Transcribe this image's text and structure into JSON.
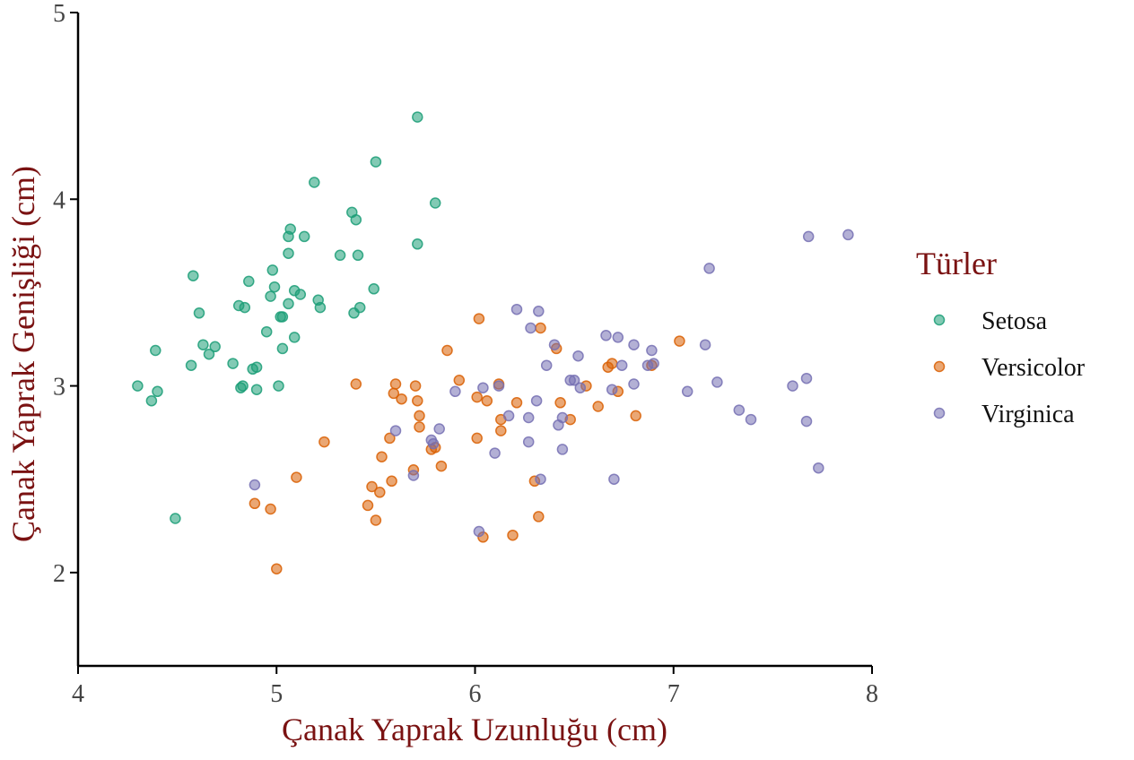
{
  "chart_data": {
    "type": "scatter",
    "title": "",
    "xlabel": "Çanak Yaprak Uzunluğu (cm)",
    "ylabel": "Çanak Yaprak Genişliği (cm)",
    "xlim": [
      4,
      8
    ],
    "ylim": [
      1.5,
      5
    ],
    "xticks": [
      "4",
      "5",
      "6",
      "7",
      "8"
    ],
    "yticks": [
      "2",
      "3",
      "4",
      "5"
    ],
    "grid": false,
    "legend": {
      "title": "Türler",
      "position": "right"
    },
    "series": [
      {
        "name": "Setosa",
        "color": "#1b9e77",
        "points": [
          [
            4.3,
            3.0
          ],
          [
            4.37,
            2.92
          ],
          [
            4.39,
            3.19
          ],
          [
            4.4,
            2.97
          ],
          [
            4.49,
            2.29
          ],
          [
            4.57,
            3.11
          ],
          [
            4.58,
            3.59
          ],
          [
            4.61,
            3.39
          ],
          [
            4.63,
            3.22
          ],
          [
            4.66,
            3.17
          ],
          [
            4.69,
            3.21
          ],
          [
            4.78,
            3.12
          ],
          [
            4.81,
            3.43
          ],
          [
            4.82,
            2.99
          ],
          [
            4.83,
            3.0
          ],
          [
            4.84,
            3.42
          ],
          [
            4.86,
            3.56
          ],
          [
            4.88,
            3.09
          ],
          [
            4.9,
            3.1
          ],
          [
            4.9,
            2.98
          ],
          [
            4.95,
            3.29
          ],
          [
            4.97,
            3.48
          ],
          [
            4.98,
            3.62
          ],
          [
            4.99,
            3.53
          ],
          [
            5.01,
            3.0
          ],
          [
            5.02,
            3.37
          ],
          [
            5.03,
            3.37
          ],
          [
            5.03,
            3.2
          ],
          [
            5.06,
            3.44
          ],
          [
            5.06,
            3.71
          ],
          [
            5.06,
            3.8
          ],
          [
            5.07,
            3.84
          ],
          [
            5.09,
            3.51
          ],
          [
            5.09,
            3.26
          ],
          [
            5.12,
            3.49
          ],
          [
            5.14,
            3.8
          ],
          [
            5.19,
            4.09
          ],
          [
            5.21,
            3.46
          ],
          [
            5.22,
            3.42
          ],
          [
            5.32,
            3.7
          ],
          [
            5.38,
            3.93
          ],
          [
            5.39,
            3.39
          ],
          [
            5.4,
            3.89
          ],
          [
            5.41,
            3.7
          ],
          [
            5.42,
            3.42
          ],
          [
            5.49,
            3.52
          ],
          [
            5.5,
            4.2
          ],
          [
            5.71,
            3.76
          ],
          [
            5.71,
            4.44
          ],
          [
            5.8,
            3.98
          ]
        ]
      },
      {
        "name": "Versicolor",
        "color": "#d95f02",
        "points": [
          [
            4.89,
            2.37
          ],
          [
            4.97,
            2.34
          ],
          [
            5.0,
            2.02
          ],
          [
            5.1,
            2.51
          ],
          [
            5.24,
            2.7
          ],
          [
            5.4,
            3.01
          ],
          [
            5.46,
            2.36
          ],
          [
            5.48,
            2.46
          ],
          [
            5.5,
            2.28
          ],
          [
            5.52,
            2.43
          ],
          [
            5.53,
            2.62
          ],
          [
            5.57,
            2.72
          ],
          [
            5.58,
            2.49
          ],
          [
            5.59,
            2.96
          ],
          [
            5.6,
            3.01
          ],
          [
            5.63,
            2.93
          ],
          [
            5.69,
            2.55
          ],
          [
            5.7,
            3.0
          ],
          [
            5.71,
            2.92
          ],
          [
            5.72,
            2.84
          ],
          [
            5.72,
            2.78
          ],
          [
            5.78,
            2.66
          ],
          [
            5.8,
            2.67
          ],
          [
            5.83,
            2.57
          ],
          [
            5.86,
            3.19
          ],
          [
            5.92,
            3.03
          ],
          [
            6.01,
            2.94
          ],
          [
            6.01,
            2.72
          ],
          [
            6.02,
            3.36
          ],
          [
            6.04,
            2.19
          ],
          [
            6.06,
            2.92
          ],
          [
            6.12,
            3.01
          ],
          [
            6.13,
            2.82
          ],
          [
            6.13,
            2.76
          ],
          [
            6.19,
            2.2
          ],
          [
            6.21,
            2.91
          ],
          [
            6.3,
            2.49
          ],
          [
            6.32,
            2.3
          ],
          [
            6.33,
            3.31
          ],
          [
            6.41,
            3.2
          ],
          [
            6.43,
            2.91
          ],
          [
            6.48,
            2.82
          ],
          [
            6.56,
            3.0
          ],
          [
            6.62,
            2.89
          ],
          [
            6.67,
            3.1
          ],
          [
            6.69,
            3.12
          ],
          [
            6.72,
            2.97
          ],
          [
            6.81,
            2.84
          ],
          [
            6.89,
            3.11
          ],
          [
            7.03,
            3.24
          ]
        ]
      },
      {
        "name": "Virginica",
        "color": "#7570b3",
        "points": [
          [
            4.89,
            2.47
          ],
          [
            5.6,
            2.76
          ],
          [
            5.69,
            2.52
          ],
          [
            5.78,
            2.71
          ],
          [
            5.79,
            2.69
          ],
          [
            5.82,
            2.77
          ],
          [
            5.9,
            2.97
          ],
          [
            6.02,
            2.22
          ],
          [
            6.04,
            2.99
          ],
          [
            6.1,
            2.64
          ],
          [
            6.12,
            3.0
          ],
          [
            6.17,
            2.84
          ],
          [
            6.21,
            3.41
          ],
          [
            6.27,
            2.7
          ],
          [
            6.27,
            2.83
          ],
          [
            6.28,
            3.31
          ],
          [
            6.31,
            2.92
          ],
          [
            6.32,
            3.4
          ],
          [
            6.33,
            2.5
          ],
          [
            6.36,
            3.11
          ],
          [
            6.4,
            3.22
          ],
          [
            6.42,
            2.79
          ],
          [
            6.44,
            2.66
          ],
          [
            6.44,
            2.83
          ],
          [
            6.48,
            3.03
          ],
          [
            6.5,
            3.03
          ],
          [
            6.52,
            3.16
          ],
          [
            6.53,
            2.99
          ],
          [
            6.66,
            3.27
          ],
          [
            6.69,
            2.98
          ],
          [
            6.7,
            2.5
          ],
          [
            6.72,
            3.26
          ],
          [
            6.74,
            3.11
          ],
          [
            6.8,
            3.22
          ],
          [
            6.8,
            3.01
          ],
          [
            6.87,
            3.11
          ],
          [
            6.89,
            3.19
          ],
          [
            6.9,
            3.12
          ],
          [
            7.07,
            2.97
          ],
          [
            7.16,
            3.22
          ],
          [
            7.18,
            3.63
          ],
          [
            7.22,
            3.02
          ],
          [
            7.33,
            2.87
          ],
          [
            7.39,
            2.82
          ],
          [
            7.6,
            3.0
          ],
          [
            7.67,
            3.04
          ],
          [
            7.67,
            2.81
          ],
          [
            7.68,
            3.8
          ],
          [
            7.73,
            2.56
          ],
          [
            7.88,
            3.81
          ]
        ]
      }
    ]
  }
}
